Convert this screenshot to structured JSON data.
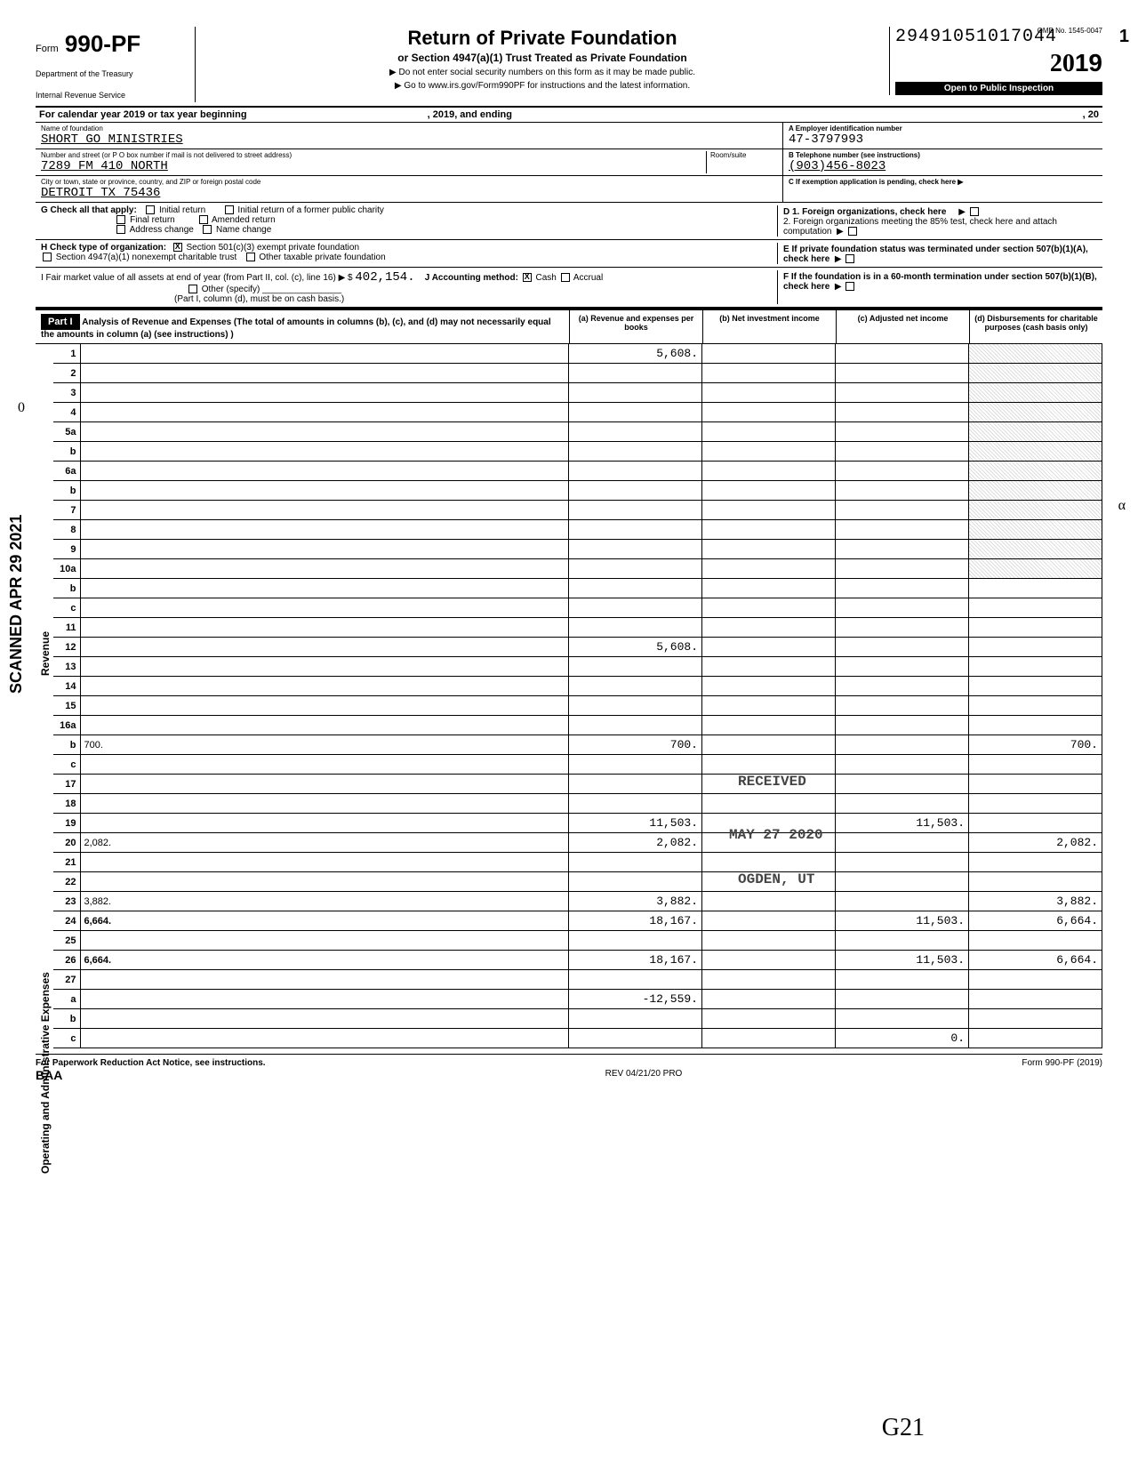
{
  "header": {
    "form_prefix": "Form",
    "form_number": "990-PF",
    "dept1": "Department of the Treasury",
    "dept2": "Internal Revenue Service",
    "title": "Return of Private Foundation",
    "subtitle": "or Section 4947(a)(1) Trust Treated as Private Foundation",
    "instruct1": "▶ Do not enter social security numbers on this form as it may be made public.",
    "instruct2": "▶ Go to www.irs.gov/Form990PF for instructions and the latest information.",
    "dln": "29491051017044",
    "omb": "OMB No. 1545-0047",
    "year_prefix": "20",
    "year": "19",
    "inspection": "Open to Public Inspection",
    "page": "1"
  },
  "calendar": {
    "left": "For calendar year 2019 or tax year beginning",
    "mid": ", 2019, and ending",
    "right": ", 20"
  },
  "org": {
    "name_lbl": "Name of foundation",
    "name": "SHORT GO MINISTRIES",
    "addr_lbl": "Number and street (or P O  box number if mail is not delivered to street address)",
    "addr": "7289 FM 410 NORTH",
    "room_lbl": "Room/suite",
    "city_lbl": "City or town, state or province, country, and ZIP or foreign postal code",
    "city": "DETROIT TX 75436",
    "ein_lbl": "A  Employer identification number",
    "ein": "47-3797993",
    "phone_lbl": "B  Telephone number (see instructions)",
    "phone": "(903)456-8023",
    "c_lbl": "C  If exemption application is pending, check here ▶"
  },
  "checks": {
    "g_lbl": "G  Check all that apply:",
    "g_initial": "Initial return",
    "g_initial_former": "Initial return of a former public charity",
    "g_final": "Final return",
    "g_amended": "Amended return",
    "g_addr": "Address change",
    "g_name": "Name change",
    "h_lbl": "H  Check type of organization:",
    "h_501c3": "Section 501(c)(3) exempt private foundation",
    "h_4947": "Section 4947(a)(1) nonexempt charitable trust",
    "h_other": "Other taxable private foundation",
    "i_lbl": "I    Fair market value of all assets at end of year  (from Part II, col. (c), line 16) ▶ $",
    "i_val": "402,154.",
    "j_lbl": "J   Accounting method:",
    "j_cash": "Cash",
    "j_accrual": "Accrual",
    "j_other": "Other (specify)",
    "j_note": "(Part I, column (d), must be on cash basis.)",
    "d1": "D  1. Foreign organizations, check here",
    "d2": "2. Foreign organizations meeting the 85% test, check here and attach computation",
    "e": "E  If private foundation status was terminated under section 507(b)(1)(A), check here",
    "f": "F  If the foundation is in a 60-month termination under section 507(b)(1)(B), check here"
  },
  "part1": {
    "label": "Part I",
    "desc": "Analysis of Revenue and Expenses (The total of amounts in columns (b), (c), and (d) may not necessarily equal the amounts in column (a) (see instructions) )",
    "col_a": "(a) Revenue and expenses per books",
    "col_b": "(b) Net investment income",
    "col_c": "(c) Adjusted net income",
    "col_d": "(d) Disbursements for charitable purposes (cash basis only)"
  },
  "side": {
    "scanned": "SCANNED APR 29 2021",
    "revenue": "Revenue",
    "opex": "Operating and Administrative Expenses"
  },
  "lines": [
    {
      "n": "1",
      "d": "",
      "a": "5,608.",
      "b": "",
      "c": ""
    },
    {
      "n": "2",
      "d": "",
      "a": "",
      "b": "",
      "c": ""
    },
    {
      "n": "3",
      "d": "",
      "a": "",
      "b": "",
      "c": ""
    },
    {
      "n": "4",
      "d": "",
      "a": "",
      "b": "",
      "c": ""
    },
    {
      "n": "5a",
      "d": "",
      "a": "",
      "b": "",
      "c": ""
    },
    {
      "n": "b",
      "d": "",
      "a": "",
      "b": "",
      "c": ""
    },
    {
      "n": "6a",
      "d": "",
      "a": "",
      "b": "",
      "c": ""
    },
    {
      "n": "b",
      "d": "",
      "a": "",
      "b": "",
      "c": ""
    },
    {
      "n": "7",
      "d": "",
      "a": "",
      "b": "",
      "c": ""
    },
    {
      "n": "8",
      "d": "",
      "a": "",
      "b": "",
      "c": ""
    },
    {
      "n": "9",
      "d": "",
      "a": "",
      "b": "",
      "c": ""
    },
    {
      "n": "10a",
      "d": "",
      "a": "",
      "b": "",
      "c": ""
    },
    {
      "n": "b",
      "d": "",
      "a": "",
      "b": "",
      "c": ""
    },
    {
      "n": "c",
      "d": "",
      "a": "",
      "b": "",
      "c": ""
    },
    {
      "n": "11",
      "d": "",
      "a": "",
      "b": "",
      "c": ""
    },
    {
      "n": "12",
      "d": "",
      "a": "5,608.",
      "b": "",
      "c": "",
      "bold": true
    },
    {
      "n": "13",
      "d": "",
      "a": "",
      "b": "",
      "c": ""
    },
    {
      "n": "14",
      "d": "",
      "a": "",
      "b": "",
      "c": ""
    },
    {
      "n": "15",
      "d": "",
      "a": "",
      "b": "",
      "c": ""
    },
    {
      "n": "16a",
      "d": "",
      "a": "",
      "b": "",
      "c": ""
    },
    {
      "n": "b",
      "d": "700.",
      "a": "700.",
      "b": "",
      "c": ""
    },
    {
      "n": "c",
      "d": "",
      "a": "",
      "b": "",
      "c": ""
    },
    {
      "n": "17",
      "d": "",
      "a": "",
      "b": "",
      "c": ""
    },
    {
      "n": "18",
      "d": "",
      "a": "",
      "b": "",
      "c": ""
    },
    {
      "n": "19",
      "d": "",
      "a": "11,503.",
      "b": "",
      "c": "11,503."
    },
    {
      "n": "20",
      "d": "2,082.",
      "a": "2,082.",
      "b": "",
      "c": ""
    },
    {
      "n": "21",
      "d": "",
      "a": "",
      "b": "",
      "c": ""
    },
    {
      "n": "22",
      "d": "",
      "a": "",
      "b": "",
      "c": ""
    },
    {
      "n": "23",
      "d": "3,882.",
      "a": "3,882.",
      "b": "",
      "c": ""
    },
    {
      "n": "24",
      "d": "6,664.",
      "a": "18,167.",
      "b": "",
      "c": "11,503.",
      "bold": true
    },
    {
      "n": "25",
      "d": "",
      "a": "",
      "b": "",
      "c": ""
    },
    {
      "n": "26",
      "d": "6,664.",
      "a": "18,167.",
      "b": "",
      "c": "11,503.",
      "bold": true
    },
    {
      "n": "27",
      "d": "",
      "a": "",
      "b": "",
      "c": ""
    },
    {
      "n": "a",
      "d": "",
      "a": "-12,559.",
      "b": "",
      "c": "",
      "bold": true
    },
    {
      "n": "b",
      "d": "",
      "a": "",
      "b": "",
      "c": "",
      "bold": true
    },
    {
      "n": "c",
      "d": "",
      "a": "",
      "b": "",
      "c": "0.",
      "bold": true
    }
  ],
  "stamps": {
    "rec": "RECEIVED",
    "date": "MAY 27 2020",
    "ogden": "OGDEN, UT"
  },
  "footer": {
    "pra": "For Paperwork Reduction Act Notice, see instructions.",
    "baa": "BAA",
    "rev": "REV 04/21/20 PRO",
    "form": "Form 990-PF (2019)",
    "sig": "G21"
  },
  "margin": {
    "zero": "0",
    "alpha": "α"
  }
}
